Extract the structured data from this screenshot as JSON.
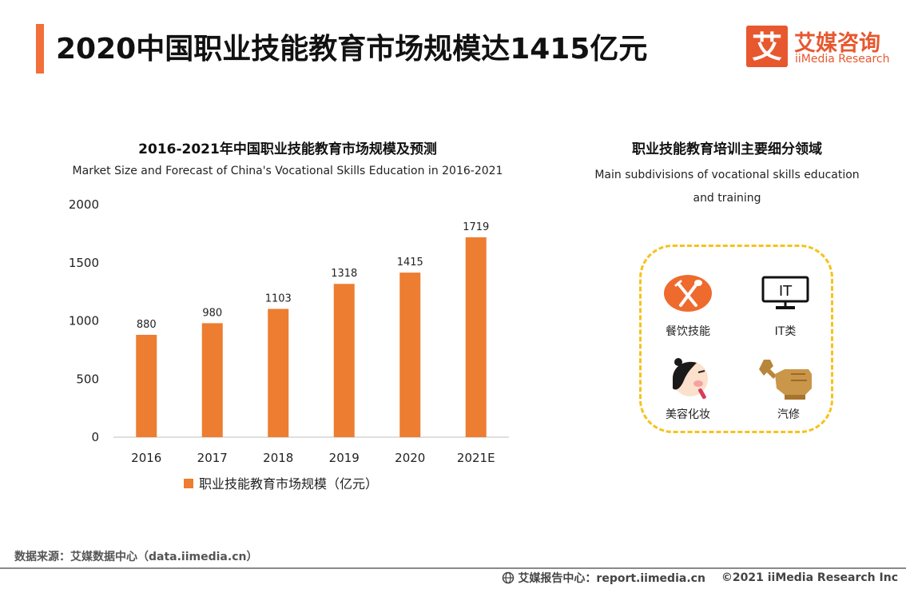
{
  "header": {
    "title": "2020中国职业技能教育市场规模达1415亿元",
    "accent_color": "#f26f3a"
  },
  "logo": {
    "cn": "艾媒咨询",
    "en": "iiMedia Research",
    "mark_char": "艾",
    "color": "#e7582f"
  },
  "left_panel": {
    "title_cn": "2016-2021年中国职业技能教育市场规模及预测",
    "title_en": "Market Size and Forecast of China's Vocational Skills Education in 2016-2021"
  },
  "chart_data": {
    "type": "bar",
    "categories": [
      "2016",
      "2017",
      "2018",
      "2019",
      "2020",
      "2021E"
    ],
    "series": [
      {
        "name": "职业技能教育市场规模（亿元）",
        "values": [
          880,
          980,
          1103,
          1318,
          1415,
          1719
        ],
        "color": "#ed7d31"
      }
    ],
    "y_ticks": [
      0,
      500,
      1000,
      1500,
      2000
    ],
    "ylim": [
      0,
      2000
    ],
    "data_labels": true,
    "grid": false,
    "legend": "bottom"
  },
  "right_panel": {
    "title_cn": "职业技能教育培训主要细分领域",
    "title_en": "Main subdivisions of vocational skills education and training",
    "items": [
      {
        "label": "餐饮技能",
        "icon": "fork-knife-icon"
      },
      {
        "label": "IT类",
        "icon": "computer-monitor-icon"
      },
      {
        "label": "美容化妆",
        "icon": "makeup-face-icon"
      },
      {
        "label": "汽修",
        "icon": "wrench-hand-icon"
      }
    ],
    "border_color": "#f6c21c"
  },
  "footer": {
    "source": "数据来源：艾媒数据中心（data.iimedia.cn）",
    "report": "艾媒报告中心：report.iimedia.cn",
    "copyright": "©2021  iiMedia Research  Inc"
  }
}
